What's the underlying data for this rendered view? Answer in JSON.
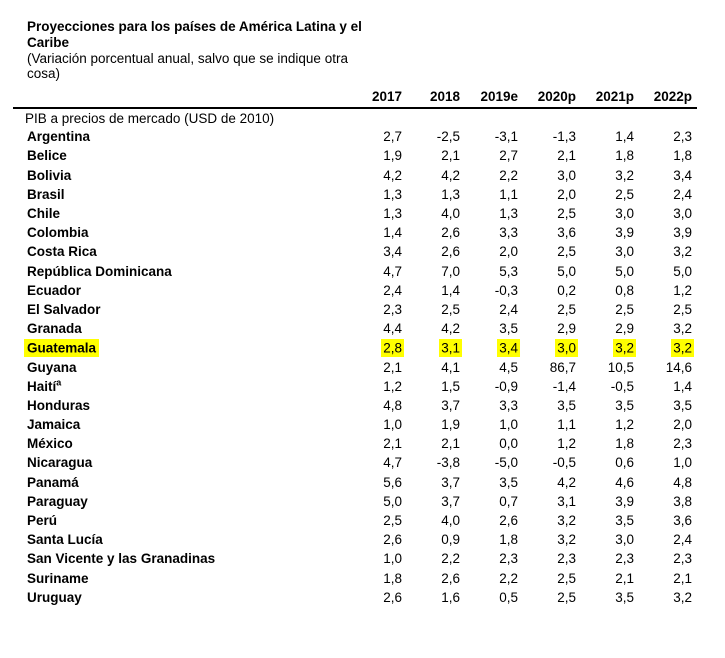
{
  "page": {
    "title": "Proyecciones para los países de América Latina y el Caribe",
    "subtitle": "(Variación porcentual anual, salvo que se indique otra cosa)"
  },
  "table": {
    "section_label": "PIB a precios de mercado (USD de 2010)",
    "year_headers": [
      "2017",
      "2018",
      "2019e",
      "2020p",
      "2021p",
      "2022p"
    ],
    "highlight_color": "#ffff00",
    "highlighted_country": "Guatemala",
    "rows": [
      {
        "country": "Argentina",
        "values": [
          "2,7",
          "-2,5",
          "-3,1",
          "-1,3",
          "1,4",
          "2,3"
        ]
      },
      {
        "country": "Belice",
        "values": [
          "1,9",
          "2,1",
          "2,7",
          "2,1",
          "1,8",
          "1,8"
        ]
      },
      {
        "country": "Bolivia",
        "values": [
          "4,2",
          "4,2",
          "2,2",
          "3,0",
          "3,2",
          "3,4"
        ]
      },
      {
        "country": "Brasil",
        "values": [
          "1,3",
          "1,3",
          "1,1",
          "2,0",
          "2,5",
          "2,4"
        ]
      },
      {
        "country": "Chile",
        "values": [
          "1,3",
          "4,0",
          "1,3",
          "2,5",
          "3,0",
          "3,0"
        ]
      },
      {
        "country": "Colombia",
        "values": [
          "1,4",
          "2,6",
          "3,3",
          "3,6",
          "3,9",
          "3,9"
        ]
      },
      {
        "country": "Costa Rica",
        "values": [
          "3,4",
          "2,6",
          "2,0",
          "2,5",
          "3,0",
          "3,2"
        ]
      },
      {
        "country": "República Dominicana",
        "values": [
          "4,7",
          "7,0",
          "5,3",
          "5,0",
          "5,0",
          "5,0"
        ]
      },
      {
        "country": "Ecuador",
        "values": [
          "2,4",
          "1,4",
          "-0,3",
          "0,2",
          "0,8",
          "1,2"
        ]
      },
      {
        "country": "El Salvador",
        "values": [
          "2,3",
          "2,5",
          "2,4",
          "2,5",
          "2,5",
          "2,5"
        ]
      },
      {
        "country": "Granada",
        "values": [
          "4,4",
          "4,2",
          "3,5",
          "2,9",
          "2,9",
          "3,2"
        ]
      },
      {
        "country": "Guatemala",
        "highlighted": true,
        "values": [
          "2,8",
          "3,1",
          "3,4",
          "3,0",
          "3,2",
          "3,2"
        ]
      },
      {
        "country": "Guyana",
        "values": [
          "2,1",
          "4,1",
          "4,5",
          "86,7",
          "10,5",
          "14,6"
        ]
      },
      {
        "country": "Haití",
        "footnote_marker": "a",
        "values": [
          "1,2",
          "1,5",
          "-0,9",
          "-1,4",
          "-0,5",
          "1,4"
        ]
      },
      {
        "country": "Honduras",
        "values": [
          "4,8",
          "3,7",
          "3,3",
          "3,5",
          "3,5",
          "3,5"
        ]
      },
      {
        "country": "Jamaica",
        "values": [
          "1,0",
          "1,9",
          "1,0",
          "1,1",
          "1,2",
          "2,0"
        ]
      },
      {
        "country": "México",
        "values": [
          "2,1",
          "2,1",
          "0,0",
          "1,2",
          "1,8",
          "2,3"
        ]
      },
      {
        "country": "Nicaragua",
        "values": [
          "4,7",
          "-3,8",
          "-5,0",
          "-0,5",
          "0,6",
          "1,0"
        ]
      },
      {
        "country": "Panamá",
        "values": [
          "5,6",
          "3,7",
          "3,5",
          "4,2",
          "4,6",
          "4,8"
        ]
      },
      {
        "country": "Paraguay",
        "values": [
          "5,0",
          "3,7",
          "0,7",
          "3,1",
          "3,9",
          "3,8"
        ]
      },
      {
        "country": "Perú",
        "values": [
          "2,5",
          "4,0",
          "2,6",
          "3,2",
          "3,5",
          "3,6"
        ]
      },
      {
        "country": "Santa Lucía",
        "values": [
          "2,6",
          "0,9",
          "1,8",
          "3,2",
          "3,0",
          "2,4"
        ]
      },
      {
        "country": "San Vicente y las Granadinas",
        "values": [
          "1,0",
          "2,2",
          "2,3",
          "2,3",
          "2,3",
          "2,3"
        ]
      },
      {
        "country": "Suriname",
        "values": [
          "1,8",
          "2,6",
          "2,2",
          "2,5",
          "2,1",
          "2,1"
        ]
      },
      {
        "country": "Uruguay",
        "values": [
          "2,6",
          "1,6",
          "0,5",
          "2,5",
          "3,5",
          "3,2"
        ]
      }
    ]
  },
  "chart_data": {
    "type": "table",
    "title": "Proyecciones para los países de América Latina y el Caribe",
    "subtitle": "(Variación porcentual anual, salvo que se indique otra cosa)",
    "section": "PIB a precios de mercado (USD de 2010)",
    "columns": [
      "2017",
      "2018",
      "2019e",
      "2020p",
      "2021p",
      "2022p"
    ]
  }
}
